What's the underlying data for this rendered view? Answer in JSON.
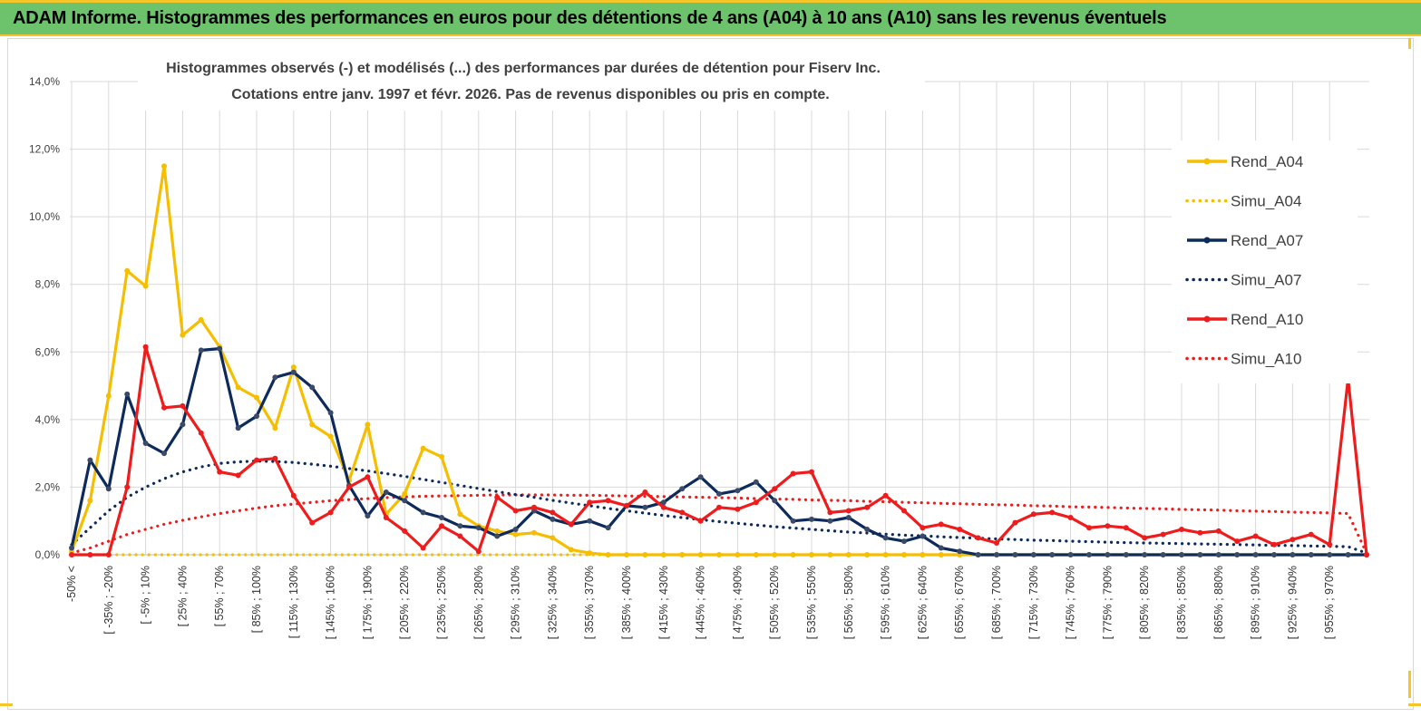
{
  "header": {
    "title": "ADAM Informe. Histogrammes des performances en euros pour des détentions de 4 ans (A04) à 10 ans (A10) sans les revenus éventuels"
  },
  "colors": {
    "A04": "#f6be00",
    "A07": "#0c2a5c",
    "A10": "#ee1c1c",
    "grid": "#d9d9d9",
    "header": "#6cc36c",
    "accent": "#f6c628"
  },
  "chart_data": {
    "type": "line",
    "title_line1": "Histogrammes observés (-) et modélisés (...)  des performances par durées de détention pour Fiserv Inc.",
    "title_line2": "Cotations entre janv. 1997 et févr. 2026. Pas de revenus disponibles ou pris en compte.",
    "xlabel": "",
    "ylabel": "",
    "ylim": [
      0,
      14
    ],
    "yticks": [
      "0,0%",
      "2,0%",
      "4,0%",
      "6,0%",
      "8,0%",
      "10,0%",
      "12,0%",
      "14,0%"
    ],
    "legend_position": "right",
    "x_tick_labels": [
      "-50% <",
      "[ -35% ; -20%",
      "[ -5% ; 10%",
      "[ 25% ; 40%",
      "[ 55% ; 70%",
      "[ 85% ; 100%",
      "[ 115% ; 130%",
      "[ 145% ; 160%",
      "[ 175% ; 190%",
      "[ 205% ; 220%",
      "[ 235% ; 250%",
      "[ 265% ; 280%",
      "[ 295% ; 310%",
      "[ 325% ; 340%",
      "[ 355% ; 370%",
      "[ 385% ; 400%",
      "[ 415% ; 430%",
      "[ 445% ; 460%",
      "[ 475% ; 490%",
      "[ 505% ; 520%",
      "[ 535% ; 550%",
      "[ 565% ; 580%",
      "[ 595% ; 610%",
      "[ 625% ; 640%",
      "[ 655% ; 670%",
      "[ 685% ; 700%",
      "[ 715% ; 730%",
      "[ 745% ; 760%",
      "[ 775% ; 790%",
      "[ 805% ; 820%",
      "[ 835% ; 850%",
      "[ 865% ; 880%",
      "[ 895% ; 910%",
      "[ 925% ; 940%",
      "[ 955% ; 970%"
    ],
    "series": [
      {
        "name": "Rend_A04",
        "key": "A04",
        "style": "solid",
        "values": [
          0.1,
          1.6,
          4.7,
          8.4,
          7.95,
          11.5,
          6.5,
          6.95,
          6.15,
          4.95,
          4.65,
          3.75,
          5.55,
          3.85,
          3.5,
          2.2,
          3.85,
          1.2,
          1.8,
          3.15,
          2.9,
          1.2,
          0.85,
          0.7,
          0.6,
          0.65,
          0.5,
          0.15,
          0.05,
          0.0,
          0.0,
          0.0,
          0.0,
          0.0,
          0.0,
          0.0,
          0.0,
          0.0,
          0.0,
          0.0,
          0.0,
          0.0,
          0.0,
          0.0,
          0.0,
          0.0,
          0.0,
          0.0,
          0.0,
          0.0,
          0.0
        ]
      },
      {
        "name": "Simu_A04",
        "key": "A04",
        "style": "dotted",
        "values": [
          0.0,
          0.0,
          0.0,
          0.0,
          0.0,
          0.0,
          0.0,
          0.0,
          0.0,
          0.0,
          0.0,
          0.0,
          0.0,
          0.0,
          0.0,
          0.0,
          0.0,
          0.0,
          0.0,
          0.0,
          0.0,
          0.0,
          0.0,
          0.0,
          0.0,
          0.0,
          0.0,
          0.0,
          0.0,
          0.0,
          0.0,
          0.0,
          0.0,
          0.0,
          0.0,
          0.0,
          0.0,
          0.0,
          0.0,
          0.0,
          0.0,
          0.0,
          0.0,
          0.0,
          0.0,
          0.0,
          0.0,
          0.0,
          0.0,
          0.0,
          0.0
        ]
      },
      {
        "name": "Rend_A07",
        "key": "A07",
        "style": "solid",
        "values": [
          0.2,
          2.8,
          1.95,
          4.75,
          3.3,
          3.0,
          3.85,
          6.05,
          6.1,
          3.75,
          4.1,
          5.25,
          5.4,
          4.95,
          4.2,
          2.05,
          1.15,
          1.85,
          1.6,
          1.25,
          1.1,
          0.85,
          0.8,
          0.55,
          0.75,
          1.3,
          1.05,
          0.9,
          1.0,
          0.8,
          1.45,
          1.4,
          1.55,
          1.95,
          2.3,
          1.8,
          1.9,
          2.15,
          1.6,
          1.0,
          1.05,
          1.0,
          1.1,
          0.75,
          0.5,
          0.4,
          0.55,
          0.2,
          0.1,
          0.0,
          0.0
        ]
      },
      {
        "name": "Simu_A07",
        "key": "A07",
        "style": "dotted",
        "values": [
          0.3,
          0.8,
          1.3,
          1.7,
          2.0,
          2.25,
          2.45,
          2.6,
          2.7,
          2.75,
          2.77,
          2.76,
          2.73,
          2.68,
          2.62,
          2.55,
          2.48,
          2.4,
          2.32,
          2.23,
          2.14,
          2.05,
          1.96,
          1.87,
          1.78,
          1.7,
          1.61,
          1.53,
          1.45,
          1.37,
          1.3,
          1.23,
          1.16,
          1.1,
          1.04,
          0.98,
          0.93,
          0.88,
          0.83,
          0.79,
          0.75,
          0.71,
          0.67,
          0.64,
          0.61,
          0.58,
          0.56,
          0.53,
          0.51,
          0.49,
          0.47
        ]
      },
      {
        "name": "Rend_A10",
        "key": "A10",
        "style": "solid",
        "values": [
          0.0,
          0.0,
          0.0,
          2.0,
          6.15,
          4.35,
          4.4,
          3.6,
          2.45,
          2.35,
          2.8,
          2.85,
          1.75,
          0.95,
          1.25,
          2.0,
          2.3,
          1.1,
          0.7,
          0.2,
          0.85,
          0.55,
          0.1,
          1.7,
          1.3,
          1.4,
          1.25,
          0.9,
          1.55,
          1.6,
          1.45,
          1.85,
          1.4,
          1.25,
          1.0,
          1.4,
          1.35,
          1.55,
          1.95,
          2.4,
          2.45,
          1.25,
          1.3,
          1.4,
          1.75,
          1.3,
          0.8,
          0.9,
          0.75,
          0.5,
          0.35
        ]
      },
      {
        "name": "Simu_A10",
        "key": "A10",
        "style": "dotted",
        "values": [
          0.05,
          0.2,
          0.4,
          0.6,
          0.75,
          0.9,
          1.02,
          1.12,
          1.22,
          1.3,
          1.38,
          1.45,
          1.5,
          1.55,
          1.6,
          1.63,
          1.66,
          1.69,
          1.71,
          1.73,
          1.74,
          1.75,
          1.76,
          1.77,
          1.77,
          1.77,
          1.77,
          1.76,
          1.76,
          1.75,
          1.74,
          1.73,
          1.72,
          1.71,
          1.7,
          1.69,
          1.68,
          1.66,
          1.65,
          1.64,
          1.62,
          1.61,
          1.6,
          1.58,
          1.57,
          1.55,
          1.54,
          1.52,
          1.51,
          1.49,
          1.48
        ]
      }
    ],
    "series_tail": {
      "A04": [
        0.0,
        0.0,
        0.0,
        0.0,
        0.0,
        0.0,
        0.0,
        0.0,
        0.0,
        0.0,
        0.0,
        0.0,
        0.0,
        0.0,
        0.0,
        0.0,
        0.0,
        0.0,
        0.0,
        0.0
      ],
      "A07": [
        0.0,
        0.0,
        0.0,
        0.0,
        0.0,
        0.0,
        0.0,
        0.0,
        0.0,
        0.0,
        0.0,
        0.0,
        0.0,
        0.0,
        0.0,
        0.0,
        0.0,
        0.0,
        0.0,
        0.0
      ],
      "A07_simu": [
        0.45,
        0.43,
        0.42,
        0.4,
        0.39,
        0.37,
        0.36,
        0.35,
        0.34,
        0.33,
        0.32,
        0.31,
        0.3,
        0.29,
        0.28,
        0.27,
        0.26,
        0.25,
        0.24,
        0.05
      ],
      "A10": [
        0.95,
        1.2,
        1.25,
        1.1,
        0.8,
        0.85,
        0.8,
        0.5,
        0.6,
        0.75,
        0.65,
        0.7,
        0.4,
        0.55,
        0.3,
        0.45,
        0.6,
        0.3,
        5.2,
        0.0
      ],
      "A10_simu": [
        1.47,
        1.45,
        1.44,
        1.42,
        1.41,
        1.4,
        1.38,
        1.37,
        1.36,
        1.34,
        1.33,
        1.32,
        1.3,
        1.29,
        1.28,
        1.26,
        1.25,
        1.24,
        1.22,
        0.05
      ]
    },
    "legend": [
      "Rend_A04",
      "Simu_A04",
      "Rend_A07",
      "Simu_A07",
      "Rend_A10",
      "Simu_A10"
    ]
  }
}
